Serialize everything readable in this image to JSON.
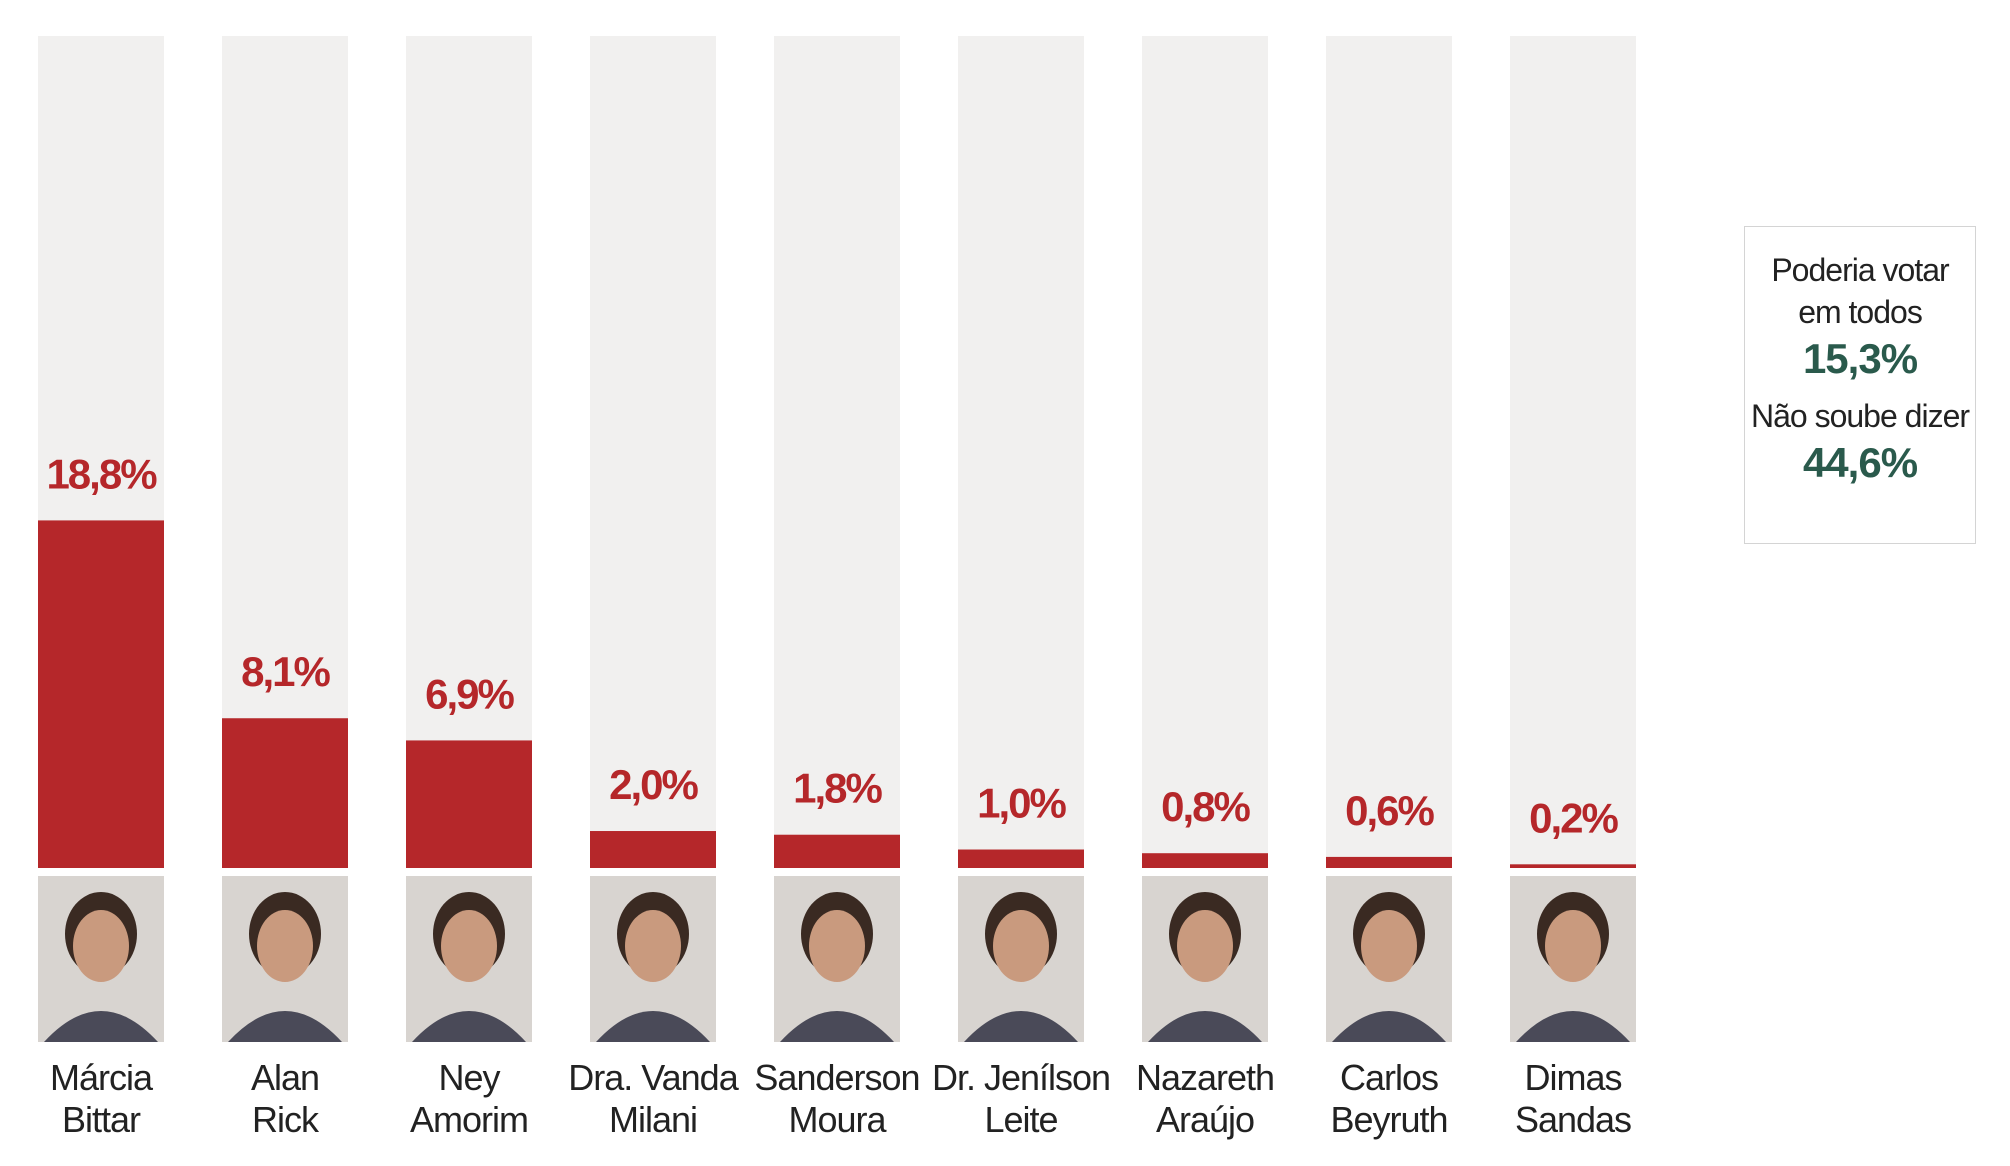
{
  "chart_data": {
    "type": "bar",
    "categories": [
      "Márcia Bittar",
      "Alan Rick",
      "Ney Amorim",
      "Dra. Vanda Milani",
      "Sanderson Moura",
      "Dr. Jenílson Leite",
      "Nazareth Araújo",
      "Carlos Beyruth",
      "Dimas Sandas"
    ],
    "category_lines": [
      [
        "Márcia",
        "Bittar"
      ],
      [
        "Alan",
        "Rick"
      ],
      [
        "Ney",
        "Amorim"
      ],
      [
        "Dra. Vanda",
        "Milani"
      ],
      [
        "Sanderson",
        "Moura"
      ],
      [
        "Dr. Jenílson",
        "Leite"
      ],
      [
        "Nazareth",
        "Araújo"
      ],
      [
        "Carlos",
        "Beyruth"
      ],
      [
        "Dimas",
        "Sandas"
      ]
    ],
    "values": [
      18.8,
      8.1,
      6.9,
      2.0,
      1.8,
      1.0,
      0.8,
      0.6,
      0.2
    ],
    "value_labels": [
      "18,8%",
      "8,1%",
      "6,9%",
      "2,0%",
      "1,8%",
      "1,0%",
      "0,8%",
      "0,6%",
      "0,2%"
    ],
    "ylim": [
      0,
      45
    ],
    "bar_color": "#b5272a",
    "track_color": "#f1f0ef",
    "photo_icon": "portrait-photo"
  },
  "side_box": {
    "label1": [
      "Poderia votar",
      "em todos"
    ],
    "value1": "15,3%",
    "label2": "Não soube dizer",
    "value2": "44,6%",
    "value_color": "#2a5a4c"
  }
}
